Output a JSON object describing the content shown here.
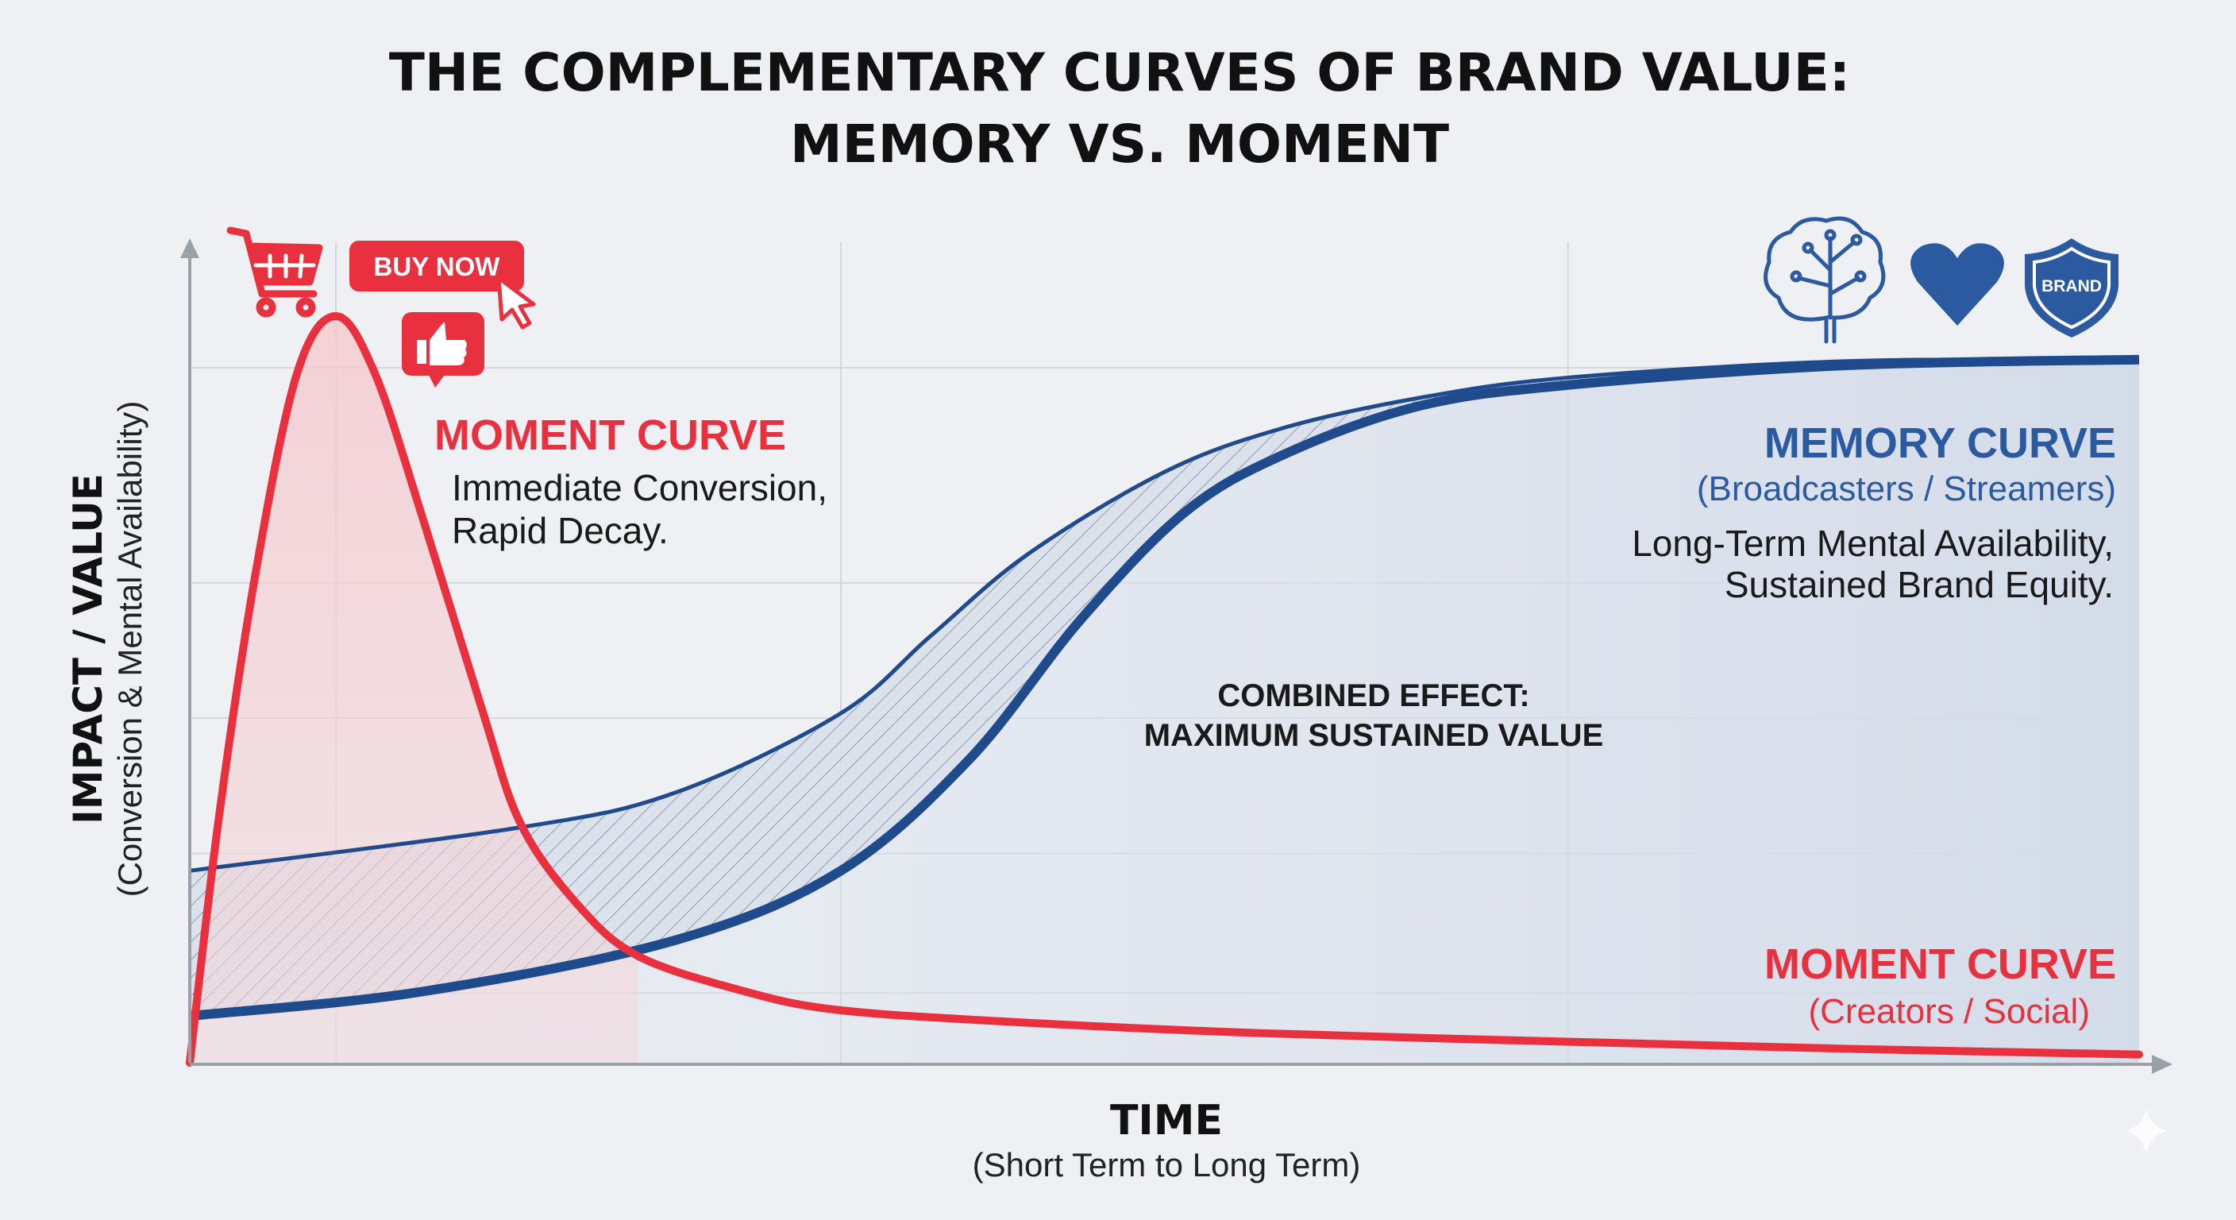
{
  "title": {
    "line1": "THE COMPLEMENTARY CURVES OF BRAND VALUE:",
    "line2": "MEMORY VS. MOMENT"
  },
  "colors": {
    "moment": "#e8303f",
    "memory": "#1f4a8c",
    "background": "#eef0f4"
  },
  "icons": {
    "moment": [
      "shopping-cart-icon",
      "buy-now-button",
      "cursor-icon",
      "thumbs-up-icon"
    ],
    "memory": [
      "brain-circuit-icon",
      "heart-icon",
      "brand-shield-icon"
    ],
    "buy_now_label": "BUY NOW",
    "shield_label": "BRAND"
  },
  "annotations": {
    "moment_top": {
      "title": "MOMENT CURVE",
      "line1": "Immediate Conversion,",
      "line2": "Rapid Decay."
    },
    "memory": {
      "title": "MEMORY CURVE",
      "subtitle": "(Broadcasters / Streamers)",
      "line1": "Long-Term Mental Availability,",
      "line2": "Sustained Brand Equity."
    },
    "combined": {
      "line1": "COMBINED EFFECT:",
      "line2": "MAXIMUM SUSTAINED VALUE"
    },
    "moment_bottom": {
      "title": "MOMENT CURVE",
      "subtitle": "(Creators / Social)"
    }
  },
  "chart_data": {
    "type": "line",
    "title": "THE COMPLEMENTARY CURVES OF BRAND VALUE: MEMORY VS. MOMENT",
    "xlabel": "TIME",
    "xlabel_sub": "(Short Term to Long Term)",
    "ylabel": "IMPACT / VALUE",
    "ylabel_sub": "(Conversion & Mental Availability)",
    "xlim": [
      0,
      100
    ],
    "ylim": [
      0,
      100
    ],
    "grid": true,
    "tick_labels": "none",
    "series": [
      {
        "name": "Moment Curve",
        "color": "#e8303f",
        "x": [
          0,
          1.5,
          3.4,
          5.5,
          7.5,
          9.5,
          12,
          15,
          17,
          20,
          23,
          28,
          33,
          42,
          55,
          70,
          85,
          100
        ],
        "y": [
          0,
          30,
          60,
          84,
          91,
          84,
          66,
          43,
          29,
          19,
          13,
          9,
          6.5,
          5,
          3.6,
          2.6,
          1.7,
          1
        ]
      },
      {
        "name": "Memory Curve",
        "color": "#1f4a8c",
        "x": [
          0,
          12,
          25,
          33.4,
          40,
          45.7,
          51,
          56,
          63,
          70.7,
          85,
          100
        ],
        "y": [
          5.7,
          8.7,
          15,
          23.4,
          37,
          54,
          67,
          74,
          80,
          82.6,
          85,
          85.7
        ]
      },
      {
        "name": "Memory Curve (combined band upper edge)",
        "color": "#1f4a8c",
        "x": [
          0,
          17,
          25,
          33.4,
          38,
          43,
          50,
          56,
          63,
          70.7,
          85,
          100
        ],
        "y": [
          23.4,
          28.7,
          33,
          42.6,
          52,
          62,
          72,
          77.3,
          81,
          83.5,
          85.5,
          85.7
        ]
      }
    ]
  }
}
